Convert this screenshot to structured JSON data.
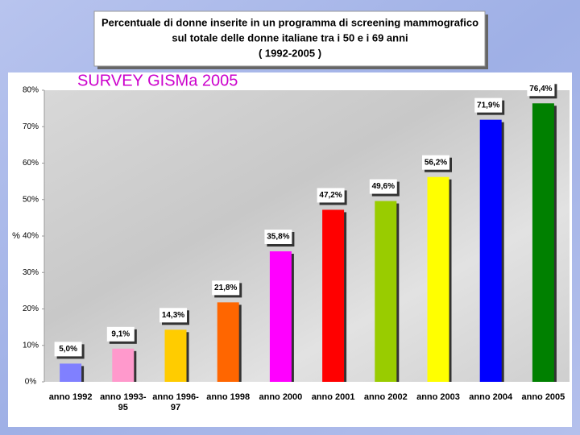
{
  "chart_data": {
    "type": "bar",
    "title": [
      "Percentuale di donne inserite in un programma di screening mammografico",
      "sul totale delle donne italiane tra i 50 e i 69 anni",
      "( 1992-2005 )"
    ],
    "annotation": "SURVEY GISMa 2005",
    "y_label": "%",
    "categories": [
      "anno 1992",
      "anno 1993-95",
      "anno 1996-97",
      "anno 1998",
      "anno 2000",
      "anno 2001",
      "anno 2002",
      "anno 2003",
      "anno 2004",
      "anno 2005"
    ],
    "values": [
      5.0,
      9.1,
      14.3,
      21.8,
      35.8,
      47.2,
      49.6,
      56.2,
      71.9,
      76.4
    ],
    "value_labels": [
      "5,0%",
      "9,1%",
      "14,3%",
      "21,8%",
      "35,8%",
      "47,2%",
      "49,6%",
      "56,2%",
      "71,9%",
      "76,4%"
    ],
    "colors": [
      "#8080ff",
      "#ff99cc",
      "#ffcc00",
      "#ff6600",
      "#ff00ff",
      "#ff0000",
      "#99cc00",
      "#ffff00",
      "#0000ff",
      "#008000"
    ],
    "ylim": [
      0,
      80
    ],
    "yticks": [
      {
        "value": 0,
        "label": "0%"
      },
      {
        "value": 10,
        "label": "10%"
      },
      {
        "value": 20,
        "label": "20%"
      },
      {
        "value": 30,
        "label": "30%"
      },
      {
        "value": 40,
        "label": "40%"
      },
      {
        "value": 50,
        "label": "50%"
      },
      {
        "value": 60,
        "label": "60%"
      },
      {
        "value": 70,
        "label": "70%"
      },
      {
        "value": 80,
        "label": "80%"
      }
    ],
    "grid": false
  }
}
